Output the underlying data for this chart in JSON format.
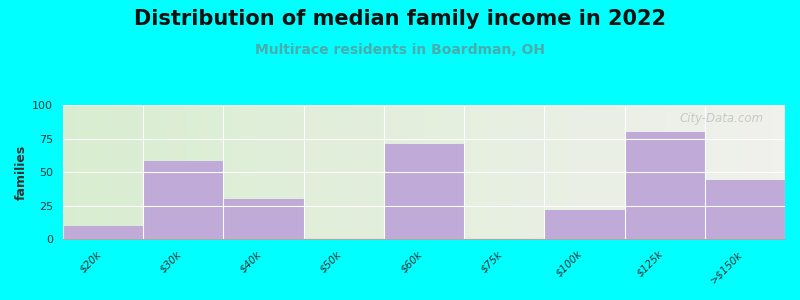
{
  "title": "Distribution of median family income in 2022",
  "subtitle": "Multirace residents in Boardman, OH",
  "categories": [
    "$20k",
    "$30k",
    "$40k",
    "$50k",
    "$60k",
    "$75k",
    "$100k",
    "$125k",
    ">$150k"
  ],
  "values": [
    10,
    58,
    30,
    0,
    71,
    0,
    22,
    80,
    44
  ],
  "bar_color": "#c0aad8",
  "background_color": "#00ffff",
  "plot_bg_left": "#d8edd0",
  "plot_bg_right": "#f0f0ec",
  "ylabel": "families",
  "ylim": [
    0,
    100
  ],
  "yticks": [
    0,
    25,
    50,
    75,
    100
  ],
  "title_fontsize": 15,
  "subtitle_fontsize": 10,
  "subtitle_color": "#4aacac",
  "watermark": "City-Data.com",
  "watermark_color": "#b8b8b8",
  "tick_label_color": "#333333",
  "tick_label_fontsize": 7.5
}
